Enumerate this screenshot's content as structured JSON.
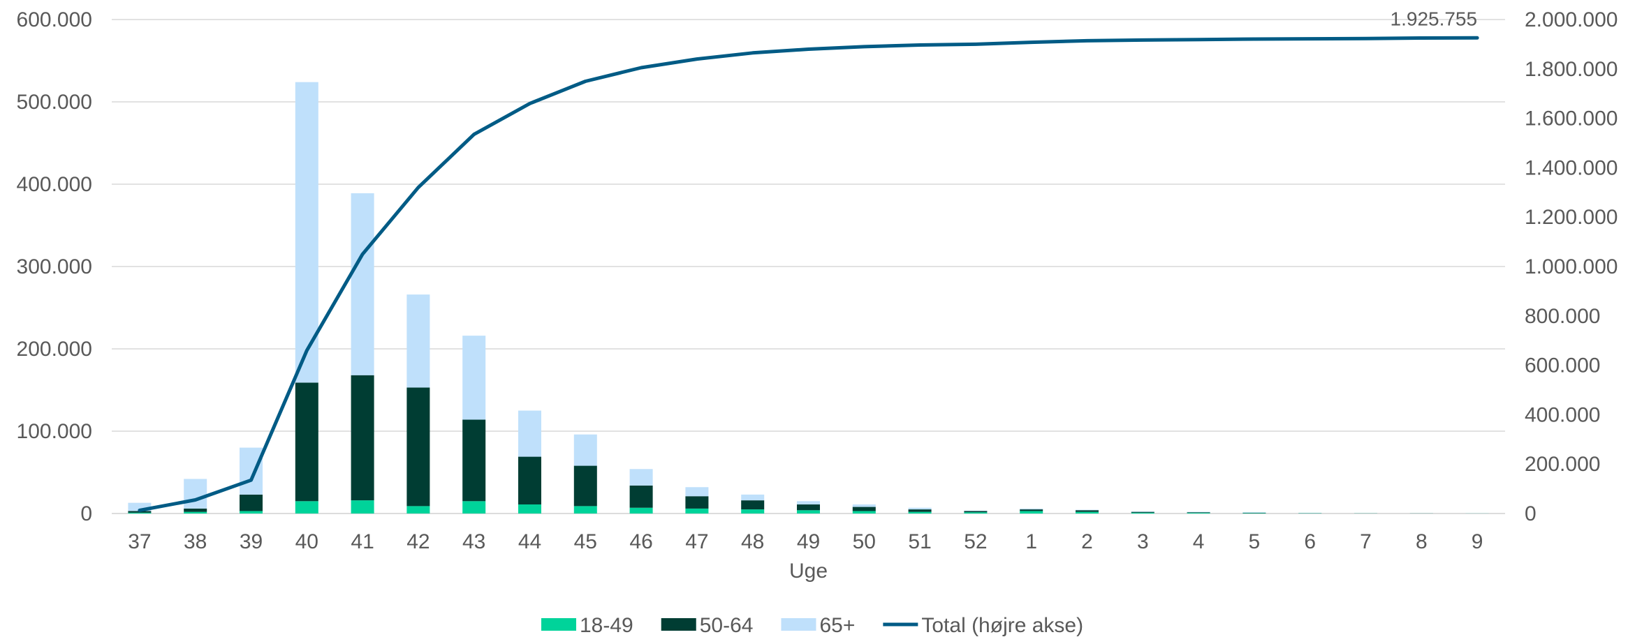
{
  "chart_data": {
    "type": "bar",
    "stacked": true,
    "categories": [
      "37",
      "38",
      "39",
      "40",
      "41",
      "42",
      "43",
      "44",
      "45",
      "46",
      "47",
      "48",
      "49",
      "50",
      "51",
      "52",
      "1",
      "2",
      "3",
      "4",
      "5",
      "6",
      "7",
      "8",
      "9"
    ],
    "xlabel": "Uge",
    "ylim_left": [
      0,
      600000
    ],
    "ylim_right": [
      0,
      2000000
    ],
    "left_ticks": [
      "0",
      "100.000",
      "200.000",
      "300.000",
      "400.000",
      "500.000",
      "600.000"
    ],
    "right_ticks": [
      "0",
      "200.000",
      "400.000",
      "600.000",
      "800.000",
      "1.000.000",
      "1.200.000",
      "1.400.000",
      "1.600.000",
      "1.800.000",
      "2.000.000"
    ],
    "grid": true,
    "legend_position": "bottom",
    "series": [
      {
        "name": "18-49",
        "type": "bar",
        "axis": "left",
        "color": "#00d39a",
        "values": [
          1000,
          2000,
          3000,
          15000,
          16000,
          9000,
          15000,
          11000,
          9000,
          7000,
          6000,
          5000,
          4000,
          3000,
          2000,
          1500,
          3000,
          2000,
          1000,
          800,
          500,
          300,
          200,
          100,
          100
        ]
      },
      {
        "name": "50-64",
        "type": "bar",
        "axis": "left",
        "color": "#003d33",
        "values": [
          2000,
          4000,
          20000,
          144000,
          152000,
          144000,
          99000,
          58000,
          49000,
          27000,
          15000,
          11000,
          7000,
          5000,
          3000,
          1500,
          2000,
          2000,
          1000,
          700,
          500,
          200,
          100,
          100,
          0
        ]
      },
      {
        "name": "65+",
        "type": "bar",
        "axis": "left",
        "color": "#bfe0fb",
        "values": [
          10000,
          36000,
          57000,
          365000,
          221000,
          113000,
          102000,
          56000,
          38000,
          20000,
          11000,
          7000,
          4000,
          3000,
          2000,
          500,
          1000,
          500,
          500,
          500,
          500,
          300,
          100,
          100,
          100
        ]
      },
      {
        "name": "Total (højre akse)",
        "type": "line",
        "axis": "right",
        "color": "#005b85",
        "values": [
          13000,
          55000,
          135000,
          660000,
          1050000,
          1320000,
          1535000,
          1660000,
          1750000,
          1805000,
          1840000,
          1865000,
          1880000,
          1890000,
          1897000,
          1900000,
          1908000,
          1914000,
          1917000,
          1919000,
          1921000,
          1922000,
          1923000,
          1925000,
          1925755
        ]
      }
    ],
    "annotations": [
      {
        "text": "1.925.755"
      }
    ]
  }
}
